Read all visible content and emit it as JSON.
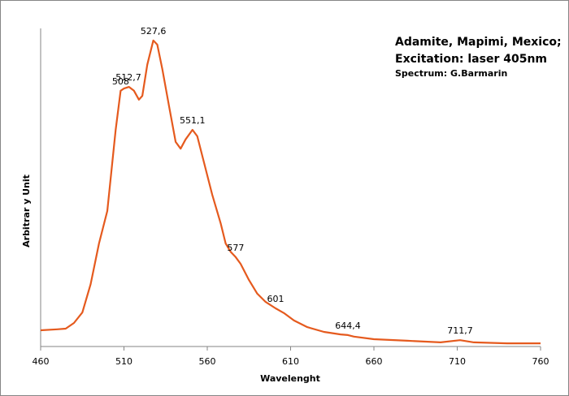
{
  "chart_data": {
    "type": "line",
    "title_lines": [
      "Adamite, Mapimi, Mexico;",
      "Excitation: laser 405nm"
    ],
    "subtitle": "Spectrum: G.Barmarin",
    "x_label": "Wavelenght",
    "y_label": "Arbitrar y Unit",
    "xlim": [
      460,
      760
    ],
    "xticks": [
      460,
      510,
      560,
      610,
      660,
      710,
      760
    ],
    "ylim": [
      0,
      100
    ],
    "series": [
      {
        "color": "#e55a1e",
        "x": [
          460,
          470,
          475,
          480,
          485,
          490,
          495,
          500,
          505,
          508,
          510,
          513,
          516,
          519,
          521,
          524,
          527.6,
          530,
          533,
          537,
          541,
          544,
          547,
          551.1,
          554,
          558,
          563,
          568,
          571,
          574,
          577,
          580,
          585,
          590,
          595,
          601,
          606,
          612,
          620,
          630,
          640,
          644.4,
          648,
          660,
          680,
          700,
          711.7,
          720,
          740,
          760
        ],
        "values": [
          5.1,
          5.4,
          5.6,
          7.4,
          10.7,
          19.6,
          32.4,
          42.6,
          68.1,
          80.4,
          81.1,
          81.6,
          80.4,
          77.6,
          78.8,
          88.6,
          96.2,
          94.9,
          87.2,
          75.8,
          64.3,
          62.2,
          65.1,
          68.1,
          66.1,
          57.9,
          47.7,
          38.8,
          32.4,
          29.8,
          28.1,
          26.0,
          20.9,
          16.6,
          14.0,
          12.0,
          10.5,
          8.2,
          6.1,
          4.6,
          3.8,
          3.6,
          3.1,
          2.3,
          1.8,
          1.3,
          2.0,
          1.3,
          1.0,
          1.0
        ]
      }
    ],
    "annotations": [
      {
        "x": 508,
        "y": 80.4,
        "label": "508"
      },
      {
        "x": 512.7,
        "y": 81.6,
        "label": "512,7"
      },
      {
        "x": 527.6,
        "y": 96.2,
        "label": "527,6"
      },
      {
        "x": 551.1,
        "y": 68.1,
        "label": "551,1"
      },
      {
        "x": 577,
        "y": 28.1,
        "label": "577"
      },
      {
        "x": 601,
        "y": 12.0,
        "label": "601"
      },
      {
        "x": 644.4,
        "y": 3.6,
        "label": "644,4"
      },
      {
        "x": 711.7,
        "y": 2.0,
        "label": "711,7"
      }
    ]
  }
}
